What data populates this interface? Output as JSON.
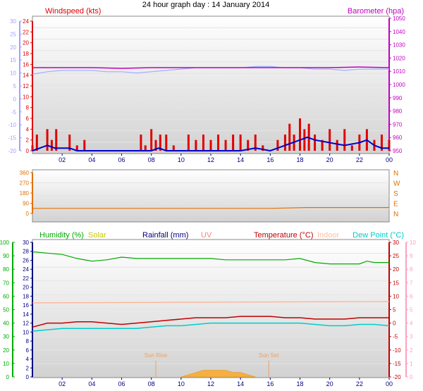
{
  "title": "24 hour graph day : 14 January 2014",
  "colors": {
    "wind": "#e00000",
    "gust_line": "#0000cc",
    "baro": "#c000c0",
    "temp_axis": "#ff9fbf",
    "dir": "#e07000",
    "humidity": "#00aa00",
    "solar": "#c8c800",
    "rain": "#000080",
    "uv": "#ff8080",
    "temperature": "#c00000",
    "indoor": "#ffc0a0",
    "dewpoint": "#00cccc",
    "left_temp_axis": "#a0a0ff"
  },
  "x_ticks": [
    "02",
    "04",
    "06",
    "08",
    "10",
    "12",
    "14",
    "16",
    "18",
    "20",
    "22",
    "00"
  ],
  "chart_data": [
    {
      "type": "line",
      "panel": "wind-pressure",
      "labels": {
        "left": "Windspeed (kts)",
        "right": "Barometer (hpa)"
      },
      "left_temp_axis": {
        "ylim": [
          -20,
          30
        ],
        "ticks": [
          "30",
          "25",
          "20",
          "15",
          "10",
          "5",
          "0",
          "-5",
          "-10",
          "-15",
          "-20"
        ]
      },
      "wind_axis": {
        "ylim": [
          0,
          25
        ],
        "ticks": [
          "24",
          "22",
          "20",
          "18",
          "16",
          "14",
          "12",
          "10",
          "8",
          "6",
          "4",
          "2",
          "0"
        ]
      },
      "baro_axis": {
        "ylim": [
          947,
          1051
        ],
        "ticks": [
          "1050",
          "1040",
          "1030",
          "1020",
          "1010",
          "1000",
          "990",
          "980",
          "970",
          "960",
          "950"
        ]
      },
      "series": [
        {
          "key": "barometer",
          "x": [
            0,
            2,
            4,
            6,
            8,
            10,
            12,
            14,
            16,
            18,
            20,
            22,
            24
          ],
          "values": [
            1012,
            1012,
            1012,
            1011.5,
            1012,
            1012,
            1012,
            1012,
            1012,
            1012,
            1012,
            1012.5,
            1012
          ]
        },
        {
          "key": "temperature",
          "x": [
            0,
            1,
            2,
            3,
            4,
            5,
            6,
            7,
            8,
            9,
            10,
            11,
            12,
            13,
            14,
            15,
            16,
            17,
            18,
            19,
            20,
            21,
            22,
            23,
            24
          ],
          "values": [
            9.5,
            10.5,
            11,
            11,
            11,
            10.5,
            10.5,
            10,
            10.5,
            11,
            11.5,
            12,
            12,
            12,
            12,
            12.5,
            12.5,
            12,
            12,
            11.5,
            11.5,
            11,
            11.5,
            11.5,
            11.5
          ]
        },
        {
          "key": "wind_avg",
          "x": [
            0,
            0.5,
            1,
            1.5,
            2,
            2.5,
            3,
            4,
            5,
            6,
            7,
            8,
            8.5,
            9,
            10,
            11,
            12,
            13,
            14,
            15,
            16,
            16.5,
            17,
            17.5,
            18,
            18.5,
            19,
            20,
            21,
            22,
            22.5,
            23,
            23.5,
            24
          ],
          "values": [
            0,
            0.5,
            1,
            0.5,
            0.5,
            0.5,
            0,
            0,
            0,
            0,
            0,
            0,
            0.5,
            0,
            0,
            0,
            0,
            0,
            0,
            0.5,
            0,
            0.5,
            1,
            1.5,
            2,
            2.5,
            2,
            1.5,
            1,
            1.5,
            2,
            1,
            0.5,
            0.5
          ]
        },
        {
          "key": "wind_gust",
          "x": [
            0,
            0.3,
            0.6,
            1,
            1.3,
            1.6,
            2,
            2.5,
            3,
            3.5,
            4,
            5,
            6,
            7,
            7.3,
            7.6,
            8,
            8.3,
            8.6,
            9,
            9.5,
            10,
            10.5,
            11,
            11.5,
            12,
            12.5,
            13,
            13.5,
            14,
            14.5,
            15,
            15.5,
            16,
            16.5,
            17,
            17.3,
            17.6,
            18,
            18.3,
            18.6,
            19,
            19.5,
            20,
            20.5,
            21,
            21.5,
            22,
            22.5,
            23,
            23.5,
            24
          ],
          "values": [
            1,
            3,
            0,
            4,
            2,
            4,
            0,
            3,
            1,
            2,
            0,
            0,
            0,
            0,
            3,
            1,
            4,
            2,
            3,
            3,
            1,
            0,
            3,
            2,
            3,
            2,
            3,
            2,
            3,
            3,
            2,
            3,
            1,
            0,
            2,
            3,
            5,
            3,
            6,
            4,
            5,
            3,
            2,
            4,
            2,
            4,
            1,
            3,
            4,
            2,
            3,
            2
          ]
        }
      ]
    },
    {
      "type": "line",
      "panel": "direction",
      "dir_axis": {
        "ylim": [
          0,
          360
        ],
        "ticks": [
          "360",
          "270",
          "180",
          "90",
          "0"
        ],
        "compass": [
          "N",
          "W",
          "S",
          "E",
          "N"
        ]
      },
      "series": [
        {
          "key": "wind_direction",
          "x": [
            0,
            8,
            16,
            18.5,
            24
          ],
          "values": [
            45,
            45,
            45,
            52,
            52
          ]
        }
      ]
    },
    {
      "type": "line",
      "panel": "temperature",
      "legend": [
        "Humidity (%)",
        "Solar",
        "Rainfall (mm)",
        "UV",
        "Temperature (°C)",
        "Indoor",
        "Dew Point (°C)"
      ],
      "humidity_axis": {
        "ylim": [
          0,
          100
        ],
        "ticks": [
          "100",
          "90",
          "80",
          "70",
          "60",
          "50",
          "40",
          "30",
          "20",
          "10",
          "0"
        ]
      },
      "solar_axis": {
        "ylim": [
          0,
          30
        ],
        "ticks": [
          "30",
          "28",
          "26",
          "24",
          "22",
          "20",
          "18",
          "16",
          "14",
          "12",
          "10",
          "8",
          "6",
          "4",
          "2",
          "0"
        ]
      },
      "temp_axis": {
        "ylim": [
          -20,
          30
        ],
        "ticks": [
          "30",
          "25",
          "20",
          "15",
          "10",
          "5",
          "0",
          "-5",
          "-10",
          "-15",
          "-20"
        ]
      },
      "uv_axis": {
        "ylim": [
          0,
          10
        ],
        "ticks": [
          "10",
          "9",
          "8",
          "7",
          "6",
          "5",
          "4",
          "3",
          "2",
          "1",
          "0"
        ]
      },
      "sunrise_label": "Sun Rise",
      "sunset_label": "Sun Set",
      "sunrise_h": 8.3,
      "sunset_h": 15.9,
      "series": [
        {
          "key": "humidity",
          "x": [
            0,
            1,
            2,
            3,
            4,
            5,
            6,
            7,
            8,
            9,
            10,
            11,
            12,
            13,
            14,
            15,
            16,
            17,
            18,
            19,
            20,
            21,
            22,
            22.5,
            23,
            24
          ],
          "values": [
            93,
            92,
            91,
            88,
            86,
            87,
            89,
            88,
            88,
            88,
            88,
            88,
            88,
            87,
            87,
            87,
            87,
            87,
            88,
            85,
            84,
            84,
            84,
            86,
            85,
            85
          ]
        },
        {
          "key": "temperature",
          "x": [
            0,
            1,
            2,
            3,
            4,
            5,
            6,
            7,
            8,
            9,
            10,
            11,
            12,
            13,
            14,
            15,
            16,
            17,
            18,
            19,
            20,
            21,
            22,
            23,
            24
          ],
          "values": [
            -1.5,
            0,
            0,
            0.5,
            0.5,
            0,
            -0.5,
            0,
            0.5,
            1,
            1.5,
            2,
            2,
            2,
            2.5,
            2.5,
            2.5,
            2,
            2,
            1.5,
            1.5,
            1.5,
            2,
            2,
            2
          ]
        },
        {
          "key": "dew_point",
          "x": [
            0,
            1,
            2,
            3,
            4,
            5,
            6,
            7,
            8,
            9,
            10,
            11,
            12,
            13,
            14,
            15,
            16,
            17,
            18,
            19,
            20,
            21,
            22,
            23,
            24
          ],
          "values": [
            -3,
            -2.5,
            -2,
            -2,
            -2,
            -2,
            -2,
            -2,
            -1.5,
            -1,
            -1,
            -0.5,
            0,
            0,
            0,
            0,
            0,
            0,
            0,
            -0.5,
            -1,
            -1,
            -0.5,
            -0.5,
            -1
          ]
        },
        {
          "key": "indoor",
          "x": [
            0,
            24
          ],
          "values": [
            7.5,
            8
          ]
        },
        {
          "key": "solar",
          "x": [
            10,
            10.5,
            11,
            11.5,
            12,
            12.5,
            13,
            13.5,
            14,
            14.5,
            15
          ],
          "values": [
            0,
            0.5,
            1,
            1.5,
            1.5,
            1.5,
            1.5,
            1,
            1,
            0.5,
            0
          ]
        }
      ]
    }
  ]
}
